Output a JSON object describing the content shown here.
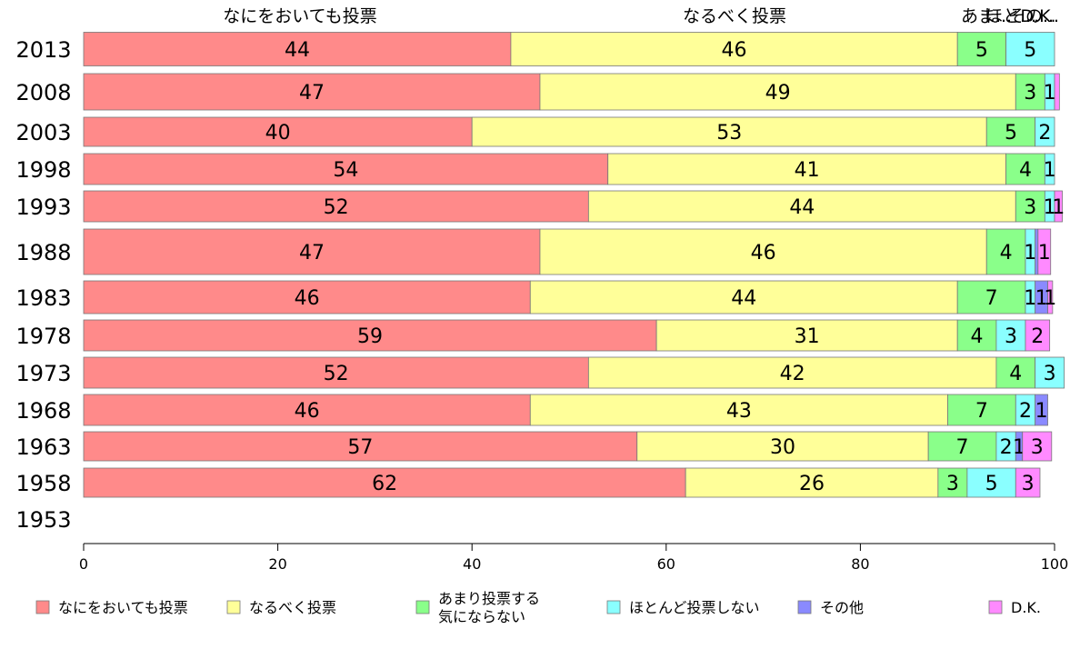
{
  "chart_data": {
    "type": "bar",
    "orientation": "horizontal",
    "stacked": true,
    "categories": [
      "2013",
      "2008",
      "2003",
      "1998",
      "1993",
      "1988",
      "1983",
      "1978",
      "1973",
      "1968",
      "1963",
      "1958",
      "1953"
    ],
    "series": [
      {
        "name": "なにをおいても投票",
        "legend_lines": [
          "なにをおいても投票"
        ],
        "top_label": "なにをおいても投票",
        "color": "#ff8a8a",
        "values": [
          44,
          47,
          40,
          54,
          52,
          47,
          46,
          59,
          52,
          46,
          57,
          62,
          null
        ],
        "labels": [
          "44",
          "47",
          "40",
          "54",
          "52",
          "47",
          "46",
          "59",
          "52",
          "46",
          "57",
          "62",
          ""
        ]
      },
      {
        "name": "なるべく投票",
        "legend_lines": [
          "なるべく投票"
        ],
        "top_label": "なるべく投票",
        "color": "#ffff99",
        "values": [
          46,
          49,
          53,
          41,
          44,
          46,
          44,
          31,
          42,
          43,
          30,
          26,
          null
        ],
        "labels": [
          "46",
          "49",
          "53",
          "41",
          "44",
          "46",
          "44",
          "31",
          "42",
          "43",
          "30",
          "26",
          ""
        ]
      },
      {
        "name": "あまり投票する気にならない",
        "legend_lines": [
          "あまり投票する",
          "気にならない"
        ],
        "top_label": "あま...",
        "color": "#8aff8a",
        "values": [
          5,
          3,
          5,
          4,
          3,
          4,
          7,
          4,
          4,
          7,
          7,
          3,
          null
        ],
        "labels": [
          "5",
          "3",
          "5",
          "4",
          "3",
          "4",
          "7",
          "4",
          "4",
          "7",
          "7",
          "3",
          ""
        ]
      },
      {
        "name": "ほとんど投票しない",
        "legend_lines": [
          "ほとんど投票しない"
        ],
        "top_label": "ほと...",
        "color": "#8affff",
        "values": [
          5,
          1,
          2,
          1,
          1,
          1,
          1,
          3,
          3,
          2,
          2,
          5,
          null
        ],
        "labels": [
          "5",
          "1",
          "2",
          "1",
          "1",
          "1",
          "1",
          "3",
          "3",
          "2",
          "2",
          "5",
          ""
        ]
      },
      {
        "name": "その他",
        "legend_lines": [
          "その他"
        ],
        "top_label": "その...",
        "color": "#8a8aff",
        "values": [
          0,
          0,
          0,
          0,
          0,
          0.3,
          1.3,
          0,
          0,
          1.3,
          0.7,
          0,
          null
        ],
        "labels": [
          "",
          "",
          "",
          "",
          "",
          "",
          "1",
          "",
          "",
          "1",
          "1",
          "",
          ""
        ]
      },
      {
        "name": "D.K.",
        "legend_lines": [
          "D.K."
        ],
        "top_label": "D.K.",
        "color": "#ff8aff",
        "values": [
          0,
          0.5,
          0,
          0,
          0.8,
          1.3,
          0.5,
          2.5,
          0,
          0,
          3,
          2.5,
          null
        ],
        "labels": [
          "",
          "",
          "",
          "",
          "1",
          "1",
          "1",
          "2",
          "",
          "",
          "3",
          "3",
          ""
        ]
      }
    ],
    "xlim": [
      0,
      100
    ],
    "xticks": [
      "0",
      "20",
      "40",
      "60",
      "80",
      "100"
    ],
    "legend_position": "bottom",
    "grid": false
  }
}
